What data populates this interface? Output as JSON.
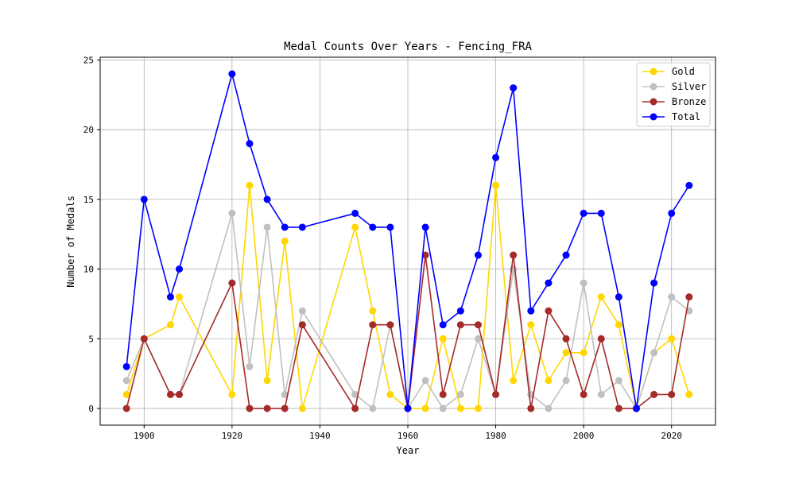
{
  "chart_data": {
    "type": "line",
    "title": "Medal Counts Over Years - Fencing_FRA",
    "xlabel": "Year",
    "ylabel": "Number of Medals",
    "xlim": [
      1890,
      2030
    ],
    "ylim": [
      -1.2,
      25.2
    ],
    "xticks": [
      1900,
      1920,
      1940,
      1960,
      1980,
      2000,
      2020
    ],
    "yticks": [
      0,
      5,
      10,
      15,
      20,
      25
    ],
    "grid": true,
    "legend_position": "top-right",
    "x": [
      1896,
      1900,
      1906,
      1908,
      1920,
      1924,
      1928,
      1932,
      1936,
      1948,
      1952,
      1956,
      1960,
      1964,
      1968,
      1972,
      1976,
      1980,
      1984,
      1988,
      1992,
      1996,
      2000,
      2004,
      2008,
      2012,
      2016,
      2020,
      2024
    ],
    "series": [
      {
        "name": "Gold",
        "color": "#FFD700",
        "values": [
          1,
          5,
          6,
          8,
          1,
          16,
          2,
          12,
          0,
          13,
          7,
          1,
          0,
          0,
          5,
          0,
          0,
          16,
          2,
          6,
          2,
          4,
          4,
          8,
          6,
          0,
          4,
          5,
          1
        ]
      },
      {
        "name": "Silver",
        "color": "#C0C0C0",
        "values": [
          2,
          5,
          1,
          1,
          14,
          3,
          13,
          1,
          7,
          1,
          0,
          6,
          0,
          2,
          0,
          1,
          5,
          1,
          10,
          1,
          0,
          2,
          9,
          1,
          2,
          0,
          4,
          8,
          7
        ]
      },
      {
        "name": "Bronze",
        "color": "#A52A2A",
        "values": [
          0,
          5,
          1,
          1,
          9,
          0,
          0,
          0,
          6,
          0,
          6,
          6,
          0,
          11,
          1,
          6,
          6,
          1,
          11,
          0,
          7,
          5,
          1,
          5,
          0,
          0,
          1,
          1,
          8
        ]
      },
      {
        "name": "Total",
        "color": "#0000FF",
        "values": [
          3,
          15,
          8,
          10,
          24,
          19,
          15,
          13,
          13,
          14,
          13,
          13,
          0,
          13,
          6,
          7,
          11,
          18,
          23,
          7,
          9,
          11,
          14,
          14,
          8,
          0,
          9,
          14,
          16
        ]
      }
    ]
  }
}
